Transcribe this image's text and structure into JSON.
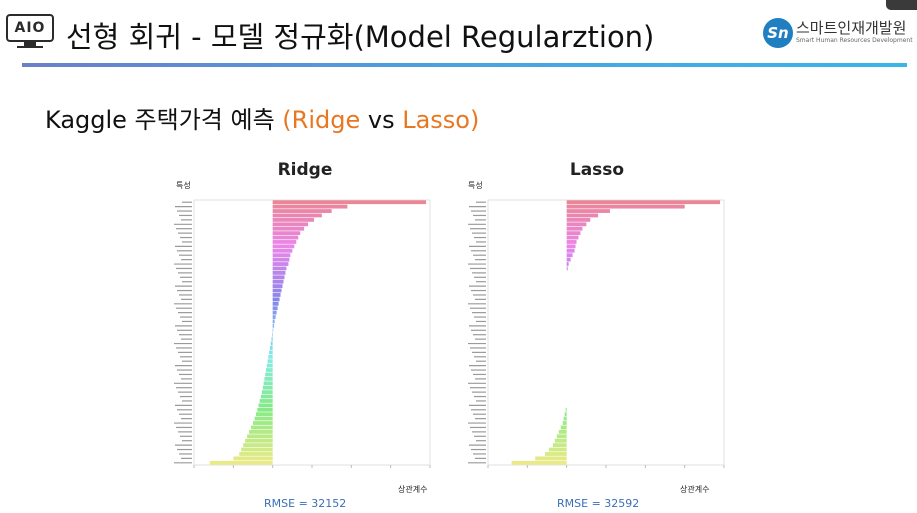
{
  "header": {
    "logo_text": "AIO",
    "title": "선형 회귀 - 모델 정규화(Model Regularztion)",
    "brand_name": "스마트인재개발원",
    "brand_sub": "Smart Human Resources Development",
    "brand_mark": "Sn"
  },
  "subtitle": {
    "main": "Kaggle 주택가격 예측 ",
    "accent1": "(Ridge",
    "mid": " vs ",
    "accent2": "Lasso)"
  },
  "accent_color": "#e87722",
  "chart_data": [
    {
      "type": "bar",
      "orientation": "horizontal",
      "title": "Ridge",
      "ylabel": "특성",
      "xlabel": "상관계수",
      "rmse": "RMSE = 32152",
      "num_features": 60,
      "xlim": [
        -0.4,
        0.8
      ],
      "values": [
        0.78,
        0.38,
        0.3,
        0.25,
        0.21,
        0.18,
        0.16,
        0.14,
        0.13,
        0.12,
        0.11,
        0.1,
        0.09,
        0.085,
        0.08,
        0.07,
        0.065,
        0.06,
        0.055,
        0.05,
        0.045,
        0.04,
        0.035,
        0.03,
        0.025,
        0.02,
        0.015,
        0.01,
        0.007,
        0.003,
        -0.003,
        -0.006,
        -0.01,
        -0.014,
        -0.018,
        -0.022,
        -0.026,
        -0.03,
        -0.034,
        -0.038,
        -0.042,
        -0.046,
        -0.05,
        -0.055,
        -0.06,
        -0.066,
        -0.072,
        -0.078,
        -0.085,
        -0.092,
        -0.1,
        -0.11,
        -0.12,
        -0.13,
        -0.14,
        -0.15,
        -0.16,
        -0.17,
        -0.2,
        -0.32
      ]
    },
    {
      "type": "bar",
      "orientation": "horizontal",
      "title": "Lasso",
      "ylabel": "특성",
      "xlabel": "상관계수",
      "rmse": "RMSE = 32592",
      "num_features": 60,
      "xlim": [
        -0.4,
        0.8
      ],
      "values": [
        0.78,
        0.6,
        0.22,
        0.16,
        0.12,
        0.1,
        0.08,
        0.07,
        0.06,
        0.05,
        0.045,
        0.04,
        0.03,
        0.02,
        0.01,
        0.005,
        0,
        0,
        0,
        0,
        0,
        0,
        0,
        0,
        0,
        0,
        0,
        0,
        0,
        0,
        0,
        0,
        0,
        0,
        0,
        0,
        0,
        0,
        0,
        0,
        0,
        0,
        0,
        0,
        0,
        0,
        0,
        -0.005,
        -0.01,
        -0.015,
        -0.02,
        -0.03,
        -0.04,
        -0.05,
        -0.06,
        -0.07,
        -0.09,
        -0.11,
        -0.16,
        -0.28
      ]
    }
  ]
}
